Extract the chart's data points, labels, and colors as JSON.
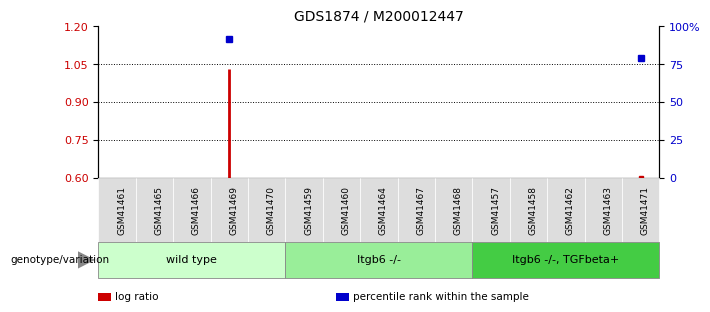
{
  "title": "GDS1874 / M200012447",
  "samples": [
    "GSM41461",
    "GSM41465",
    "GSM41466",
    "GSM41469",
    "GSM41470",
    "GSM41459",
    "GSM41460",
    "GSM41464",
    "GSM41467",
    "GSM41468",
    "GSM41457",
    "GSM41458",
    "GSM41462",
    "GSM41463",
    "GSM41471"
  ],
  "groups": [
    {
      "label": "wild type",
      "color": "#ccffcc",
      "indices": [
        0,
        1,
        2,
        3,
        4
      ]
    },
    {
      "label": "Itgb6 -/-",
      "color": "#99ee99",
      "indices": [
        5,
        6,
        7,
        8,
        9
      ]
    },
    {
      "label": "Itgb6 -/-, TGFbeta+",
      "color": "#44cc44",
      "indices": [
        10,
        11,
        12,
        13,
        14
      ]
    }
  ],
  "log_ratio_index": 3,
  "log_ratio_value": 1.03,
  "log_ratio_color": "#cc0000",
  "percentile_ranks": [
    {
      "index": 3,
      "value": 1.15
    },
    {
      "index": 14,
      "value": 1.075
    }
  ],
  "percentile_rank_color": "#0000cc",
  "log_ratio_last_index": 14,
  "log_ratio_last_value": 0.601,
  "ylim_left": [
    0.6,
    1.2
  ],
  "ylim_right": [
    0,
    100
  ],
  "yticks_left": [
    0.6,
    0.75,
    0.9,
    1.05,
    1.2
  ],
  "yticks_right": [
    0,
    25,
    50,
    75,
    100
  ],
  "hlines": [
    0.75,
    0.9,
    1.05
  ],
  "legend_items": [
    {
      "label": "log ratio",
      "color": "#cc0000"
    },
    {
      "label": "percentile rank within the sample",
      "color": "#0000cc"
    }
  ],
  "genotype_label": "genotype/variation"
}
